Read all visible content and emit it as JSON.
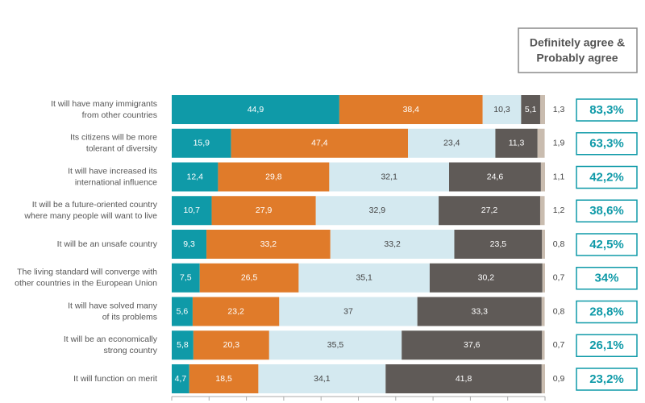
{
  "chart_data": {
    "type": "stacked_bar_horizontal",
    "categories": [
      [
        "It will have many immigrants",
        "from other countries"
      ],
      [
        "Its citizens will be more",
        "tolerant of diversity"
      ],
      [
        "It will have increased its",
        "international influence"
      ],
      [
        "It will be a future-oriented country",
        "where many people will want to live"
      ],
      [
        "It will be an unsafe country"
      ],
      [
        "The living standard will converge with",
        "other countries in the European Union"
      ],
      [
        "It will have solved many",
        "of its problems"
      ],
      [
        "It will be an economically",
        "strong country"
      ],
      [
        "It will function on merit"
      ]
    ],
    "series": [
      {
        "color": "#0f9aa8",
        "values": [
          44.9,
          15.9,
          12.4,
          10.7,
          9.3,
          7.5,
          5.6,
          5.8,
          4.7
        ],
        "value_labels": [
          "44,9",
          "15,9",
          "12,4",
          "10,7",
          "9,3",
          "7,5",
          "5,6",
          "5,8",
          "4,7"
        ]
      },
      {
        "color": "#e07b2a",
        "values": [
          38.4,
          47.4,
          29.8,
          27.9,
          33.2,
          26.5,
          23.2,
          20.3,
          18.5
        ],
        "value_labels": [
          "38,4",
          "47,4",
          "29,8",
          "27,9",
          "33,2",
          "26,5",
          "23,2",
          "20,3",
          "18,5"
        ]
      },
      {
        "color": "#d4e9f0",
        "values": [
          10.3,
          23.4,
          32.1,
          32.9,
          33.2,
          35.1,
          37,
          35.5,
          34.1
        ],
        "value_labels": [
          "10,3",
          "23,4",
          "32,1",
          "32,9",
          "33,2",
          "35,1",
          "37",
          "35,5",
          "34,1"
        ]
      },
      {
        "color": "#5f5a57",
        "values": [
          5.1,
          11.3,
          24.6,
          27.2,
          23.5,
          30.2,
          33.3,
          37.6,
          41.8
        ],
        "value_labels": [
          "5,1",
          "11,3",
          "24,6",
          "27,2",
          "23,5",
          "30,2",
          "33,3",
          "37,6",
          "41,8"
        ]
      },
      {
        "color": "#c9bcaf",
        "values": [
          1.3,
          1.9,
          1.1,
          1.2,
          0.8,
          0.7,
          0.8,
          0.7,
          0.9
        ],
        "value_labels": [
          "1,3",
          "1,9",
          "1,1",
          "1,2",
          "0,8",
          "0,7",
          "0,8",
          "0,7",
          "0,9"
        ]
      }
    ],
    "totals": {
      "title": [
        "Definitely agree &",
        "Probably agree"
      ],
      "values": [
        83.3,
        63.3,
        42.2,
        38.6,
        42.5,
        34,
        28.8,
        26.1,
        23.2
      ],
      "value_labels": [
        "83,3%",
        "63,3%",
        "42,2%",
        "38,6%",
        "42,5%",
        "34%",
        "28,8%",
        "26,1%",
        "23,2%"
      ]
    },
    "xlim": [
      0,
      100
    ],
    "xticks": [
      0,
      10,
      20,
      30,
      40,
      50,
      60,
      70,
      80,
      90,
      100
    ]
  }
}
